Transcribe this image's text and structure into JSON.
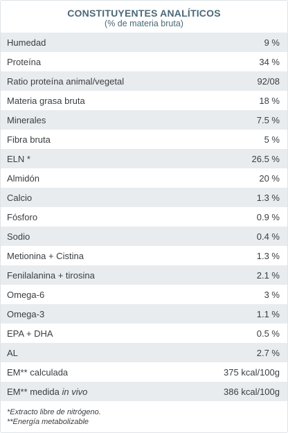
{
  "header": {
    "title": "CONSTITUYENTES ANALÍTICOS",
    "subtitle": "(% de materia bruta)"
  },
  "rows": [
    {
      "label": "Humedad",
      "value": "9 %"
    },
    {
      "label": "Proteína",
      "value": "34 %"
    },
    {
      "label": "Ratio proteína animal/vegetal",
      "value": "92/08"
    },
    {
      "label": "Materia grasa bruta",
      "value": "18 %"
    },
    {
      "label": "Minerales",
      "value": "7.5 %"
    },
    {
      "label": "Fibra bruta",
      "value": "5 %"
    },
    {
      "label": "ELN *",
      "value": "26.5 %"
    },
    {
      "label": "Almidón",
      "value": "20 %"
    },
    {
      "label": "Calcio",
      "value": "1.3 %"
    },
    {
      "label": "Fósforo",
      "value": "0.9 %"
    },
    {
      "label": "Sodio",
      "value": "0.4 %"
    },
    {
      "label": "Metionina + Cistina",
      "value": "1.3 %"
    },
    {
      "label": "Fenilalanina + tirosina",
      "value": "2.1 %"
    },
    {
      "label": "Omega-6",
      "value": "3 %"
    },
    {
      "label": "Omega-3",
      "value": "1.1 %"
    },
    {
      "label": "EPA + DHA",
      "value": "0.5 %"
    },
    {
      "label": "AL",
      "value": "2.7 %"
    },
    {
      "label": "EM** calculada",
      "value": "375 kcal/100g"
    },
    {
      "label": "EM** medida",
      "label_italic": "in vivo",
      "value": "386 kcal/100g"
    }
  ],
  "footnotes": {
    "eln": "*Extracto libre de nitrógeno.",
    "em": "**Energía metabolizable"
  },
  "colors": {
    "title": "#4a6878",
    "row_shade": "#e8ecef",
    "text": "#3a3d40"
  }
}
